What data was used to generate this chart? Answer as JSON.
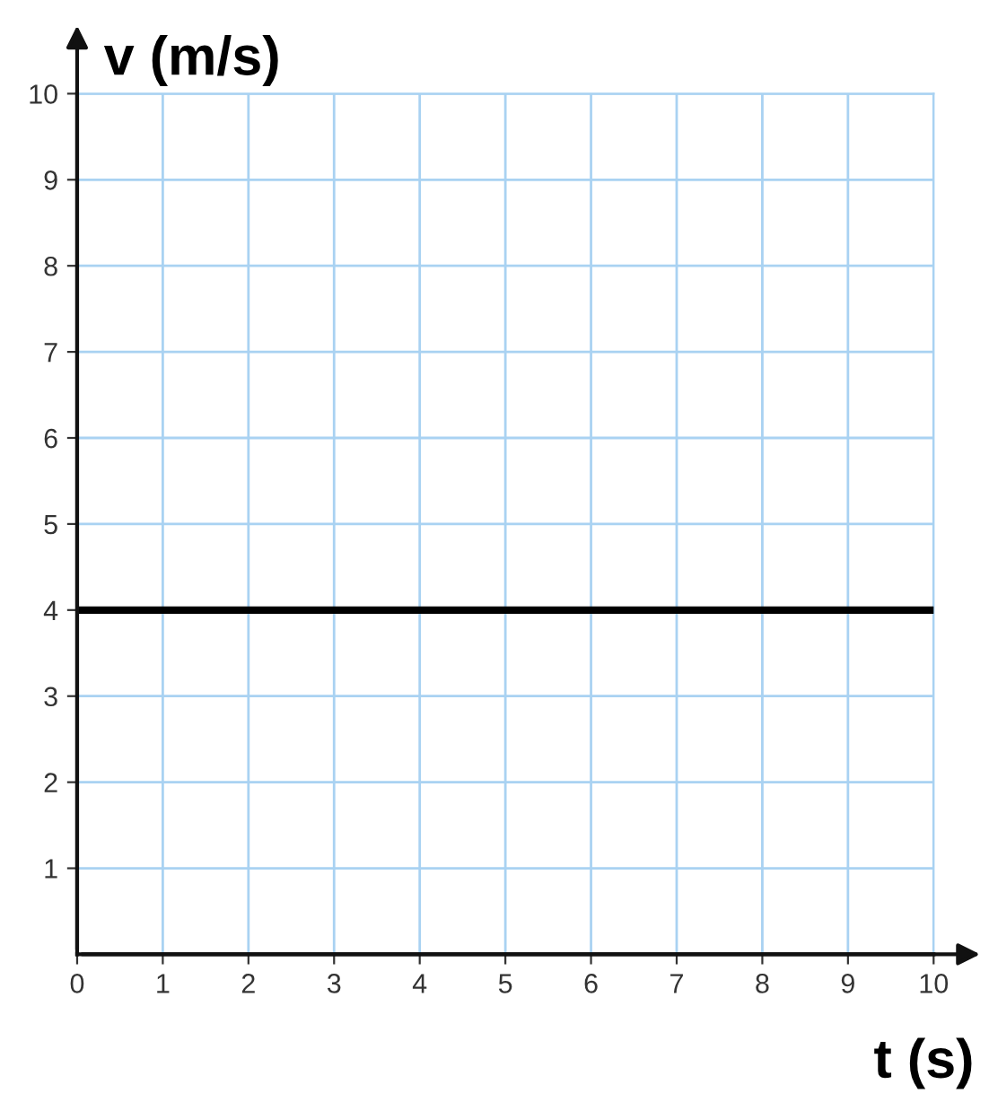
{
  "chart_data": {
    "type": "line",
    "xlabel": "t (s)",
    "ylabel": "v (m/s)",
    "x": [
      0,
      10
    ],
    "series": [
      {
        "color": "#000000",
        "values": [
          4,
          4
        ]
      }
    ],
    "xlim": [
      0,
      10
    ],
    "ylim": [
      0,
      10
    ],
    "xticks": [
      0,
      1,
      2,
      3,
      4,
      5,
      6,
      7,
      8,
      9,
      10
    ],
    "yticks": [
      1,
      2,
      3,
      4,
      5,
      6,
      7,
      8,
      9,
      10
    ],
    "grid": true
  }
}
